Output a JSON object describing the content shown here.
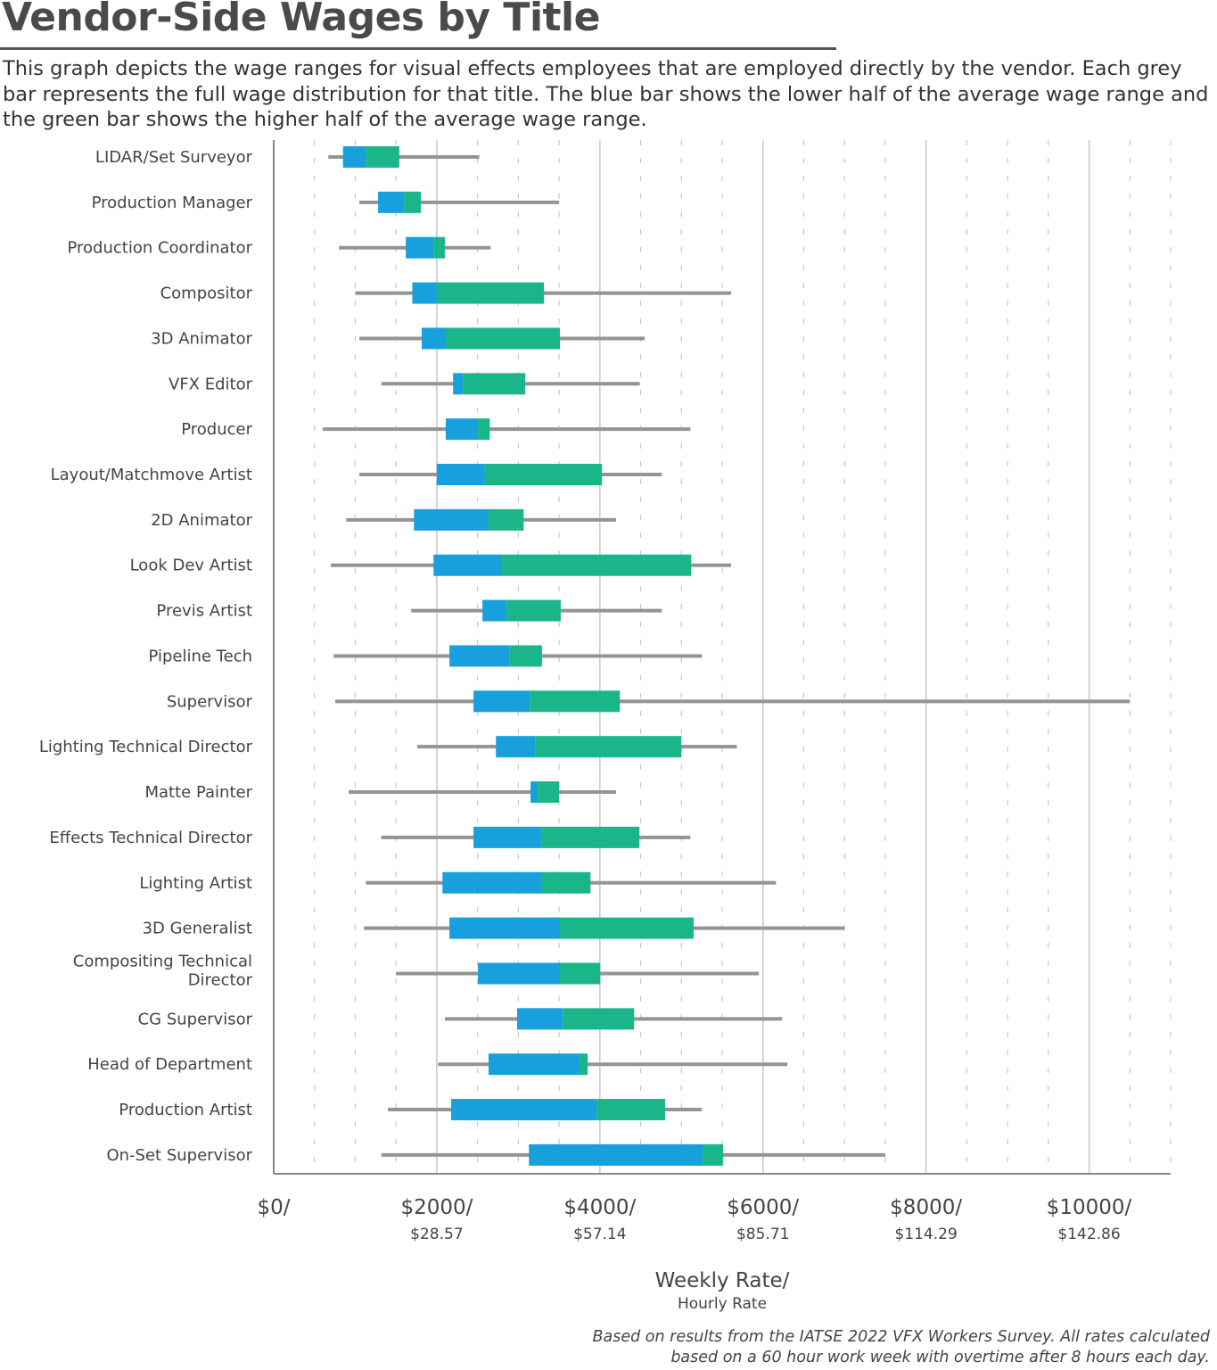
{
  "chart_data": {
    "type": "bar",
    "subtype": "horizontal range/box chart",
    "title": "Vendor-Side Wages by Title",
    "subtitle": "This graph depicts the wage ranges for visual effects employees that are employed directly by the vendor. Each grey bar represents the full wage distribution for that title. The blue bar shows the lower half of the average wage range and the green bar shows the higher half of the average wage range.",
    "xlabel": "Weekly Rate/",
    "xlabel2": "Hourly Rate",
    "xlim": [
      0,
      11000
    ],
    "xticks": [
      {
        "value": 0,
        "label": "$0/",
        "sub": ""
      },
      {
        "value": 2000,
        "label": "$2000/",
        "sub": "$28.57"
      },
      {
        "value": 4000,
        "label": "$4000/",
        "sub": "$57.14"
      },
      {
        "value": 6000,
        "label": "$6000/",
        "sub": "$85.71"
      },
      {
        "value": 8000,
        "label": "$8000/",
        "sub": "$114.29"
      },
      {
        "value": 10000,
        "label": "$10000/",
        "sub": "$142.86"
      }
    ],
    "grid": "solid every 2000, dashed every 500",
    "colors": {
      "range": "#949494",
      "lower_half": "#17a0db",
      "upper_half": "#1ab68a",
      "grid": "#c8c8c8"
    },
    "categories": [
      "LIDAR/Set Surveyor",
      "Production Manager",
      "Production Coordinator",
      "Compositor",
      "3D Animator",
      "VFX Editor",
      "Producer",
      "Layout/Matchmove Artist",
      "2D Animator",
      "Look Dev Artist",
      "Previs Artist",
      "Pipeline Tech",
      "Supervisor",
      "Lighting Technical Director",
      "Matte Painter",
      "Effects Technical Director",
      "Lighting Artist",
      "3D Generalist",
      "Compositing Technical Director",
      "CG Supervisor",
      "Head of Department",
      "Production Artist",
      "On-Set Supervisor"
    ],
    "series": [
      {
        "name": "min",
        "values": [
          670,
          1050,
          800,
          1000,
          1050,
          1320,
          600,
          1050,
          890,
          700,
          1685,
          735,
          755,
          1760,
          920,
          1320,
          1130,
          1105,
          1500,
          2100,
          2015,
          1400,
          1320
        ]
      },
      {
        "name": "avg_low",
        "values": [
          850,
          1280,
          1620,
          1700,
          1815,
          2200,
          2110,
          2000,
          1720,
          1960,
          2560,
          2155,
          2450,
          2725,
          3150,
          2450,
          2070,
          2155,
          2505,
          2985,
          2635,
          2175,
          3130
        ]
      },
      {
        "name": "avg_mid",
        "values": [
          1130,
          1600,
          1960,
          2000,
          2110,
          2320,
          2505,
          2590,
          2625,
          2800,
          2855,
          2890,
          3140,
          3205,
          3240,
          3290,
          3290,
          3510,
          3510,
          3545,
          3750,
          3960,
          5260
        ]
      },
      {
        "name": "avg_high",
        "values": [
          1540,
          1805,
          2100,
          3315,
          3510,
          3085,
          2650,
          4025,
          3065,
          5120,
          3520,
          3290,
          4245,
          5000,
          3500,
          4485,
          3885,
          5150,
          4005,
          4420,
          3850,
          4800,
          5510
        ]
      },
      {
        "name": "max",
        "values": [
          2520,
          3500,
          2660,
          5610,
          4550,
          4490,
          5110,
          4760,
          4200,
          5610,
          4760,
          5250,
          10500,
          5680,
          4200,
          5110,
          6160,
          7000,
          5950,
          6235,
          6300,
          5250,
          7500
        ]
      }
    ],
    "footnote": [
      "Based on results from the IATSE 2022 VFX Workers Survey. All rates calculated",
      "based on a 60 hour work week with overtime after 8 hours each day."
    ]
  }
}
